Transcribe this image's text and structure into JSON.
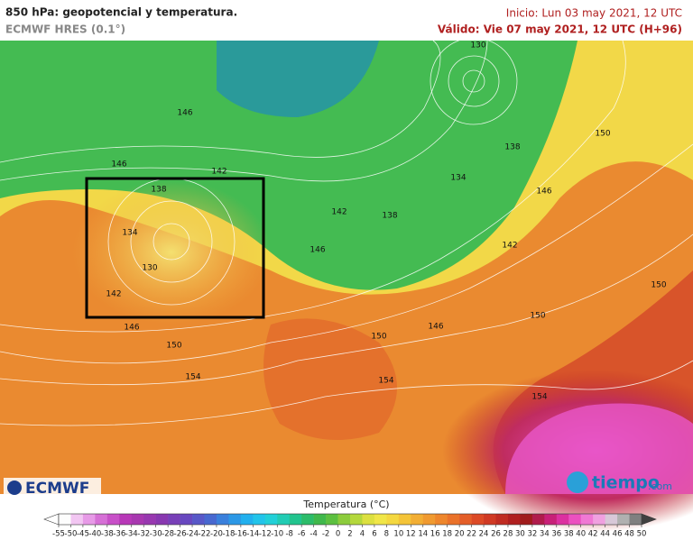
{
  "header": {
    "title": "850 hPa: geopotencial y temperatura.",
    "model": "ECMWF HRES (0.1°)",
    "init": "Inicio: Lun 03 may 2021, 12 UTC",
    "valid": "Válido: Vie 07 may 2021, 12 UTC (H+96)"
  },
  "map": {
    "contour_labels": [
      "130",
      "146",
      "146",
      "142",
      "138",
      "134",
      "130",
      "142",
      "146",
      "150",
      "154",
      "138",
      "134",
      "146",
      "142",
      "138",
      "146",
      "142",
      "150",
      "150",
      "150",
      "146",
      "150",
      "154",
      "154"
    ]
  },
  "logos": {
    "left": "ECMWF",
    "right": "tiempo",
    "right_suffix": ".com"
  },
  "colorbar": {
    "title": "Temperatura (°C)",
    "ticks": [
      -55,
      -50,
      -45,
      -40,
      -38,
      -36,
      -34,
      -32,
      -30,
      -28,
      -26,
      -24,
      -22,
      -20,
      -18,
      -16,
      -14,
      -12,
      -10,
      -8,
      -6,
      -4,
      -2,
      0,
      2,
      4,
      6,
      8,
      10,
      12,
      14,
      16,
      18,
      20,
      22,
      24,
      26,
      28,
      30,
      32,
      34,
      36,
      38,
      40,
      42,
      44,
      46,
      48,
      50
    ],
    "colors": [
      "#fdfdfd",
      "#f2c6f2",
      "#e79ae7",
      "#d670d6",
      "#c850c8",
      "#b838b8",
      "#a838b0",
      "#9838b0",
      "#8838b0",
      "#7840b8",
      "#6848c0",
      "#5858c8",
      "#4868d0",
      "#3a80dc",
      "#2c98e6",
      "#22b0ee",
      "#22c4ea",
      "#22d0d8",
      "#22ccb4",
      "#22c48e",
      "#2cbc6a",
      "#40b84c",
      "#5cc040",
      "#8ccc3c",
      "#b4d83c",
      "#dce040",
      "#f0e648",
      "#f4d840",
      "#f4c438",
      "#f2ae34",
      "#f09a30",
      "#ee862c",
      "#ea722a",
      "#e45e28",
      "#dc4a26",
      "#d03a24",
      "#c02c22",
      "#b02020",
      "#a01c1c",
      "#b01c4c",
      "#c82078",
      "#dc30a0",
      "#ec50c0",
      "#f078d4",
      "#f0a0e0",
      "#d8c8d8",
      "#b0b0b0",
      "#808080"
    ]
  }
}
